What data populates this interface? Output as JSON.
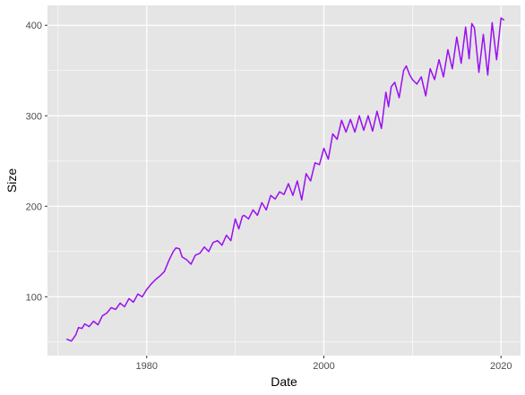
{
  "chart_data": {
    "type": "line",
    "xlabel": "Date",
    "ylabel": "Size",
    "xlim": [
      1968.8,
      2022.2
    ],
    "ylim": [
      35,
      422
    ],
    "x_ticks": [
      1980,
      2000,
      2020
    ],
    "x_tick_labels": [
      "1980",
      "2000",
      "2020"
    ],
    "y_ticks": [
      100,
      200,
      300,
      400
    ],
    "y_tick_labels": [
      "100",
      "200",
      "300",
      "400"
    ],
    "grid": true,
    "panel_background": "#e5e5e5",
    "grid_color": "#ffffff",
    "series": [
      {
        "color": "#9a0ff0",
        "x": [
          1971.0,
          1971.5,
          1972.0,
          1972.3,
          1972.7,
          1973.0,
          1973.5,
          1974.0,
          1974.5,
          1975.0,
          1975.5,
          1976.0,
          1976.5,
          1977.0,
          1977.5,
          1978.0,
          1978.5,
          1979.0,
          1979.5,
          1980.0,
          1980.5,
          1981.0,
          1981.5,
          1982.0,
          1982.5,
          1983.0,
          1983.3,
          1983.7,
          1984.0,
          1984.5,
          1985.0,
          1985.5,
          1986.0,
          1986.5,
          1987.0,
          1987.5,
          1988.0,
          1988.5,
          1989.0,
          1989.5,
          1990.0,
          1990.4,
          1990.8,
          1991.0,
          1991.5,
          1992.0,
          1992.5,
          1993.0,
          1993.5,
          1994.0,
          1994.5,
          1995.0,
          1995.5,
          1996.0,
          1996.5,
          1997.0,
          1997.5,
          1998.0,
          1998.5,
          1999.0,
          1999.5,
          2000.0,
          2000.5,
          2001.0,
          2001.5,
          2002.0,
          2002.5,
          2003.0,
          2003.5,
          2004.0,
          2004.5,
          2005.0,
          2005.5,
          2006.0,
          2006.5,
          2007.0,
          2007.3,
          2007.6,
          2008.0,
          2008.5,
          2009.0,
          2009.3,
          2009.7,
          2010.0,
          2010.5,
          2011.0,
          2011.5,
          2012.0,
          2012.5,
          2013.0,
          2013.5,
          2014.0,
          2014.5,
          2015.0,
          2015.5,
          2016.0,
          2016.4,
          2016.7,
          2017.0,
          2017.5,
          2018.0,
          2018.5,
          2019.0,
          2019.5,
          2020.0,
          2020.3
        ],
        "y": [
          53,
          51,
          58,
          66,
          65,
          70,
          67,
          73,
          69,
          79,
          82,
          88,
          86,
          93,
          89,
          98,
          94,
          103,
          100,
          108,
          114,
          119,
          123,
          128,
          140,
          150,
          154,
          153,
          144,
          141,
          136,
          146,
          148,
          155,
          150,
          160,
          162,
          157,
          168,
          162,
          186,
          175,
          189,
          190,
          186,
          196,
          190,
          204,
          196,
          212,
          208,
          216,
          213,
          225,
          212,
          228,
          207,
          236,
          228,
          248,
          246,
          264,
          252,
          280,
          274,
          295,
          282,
          296,
          282,
          300,
          284,
          300,
          283,
          305,
          286,
          326,
          310,
          332,
          337,
          320,
          350,
          355,
          345,
          340,
          335,
          343,
          322,
          352,
          340,
          362,
          343,
          373,
          352,
          387,
          358,
          398,
          363,
          402,
          397,
          348,
          390,
          345,
          403,
          362,
          408,
          406
        ]
      }
    ]
  }
}
